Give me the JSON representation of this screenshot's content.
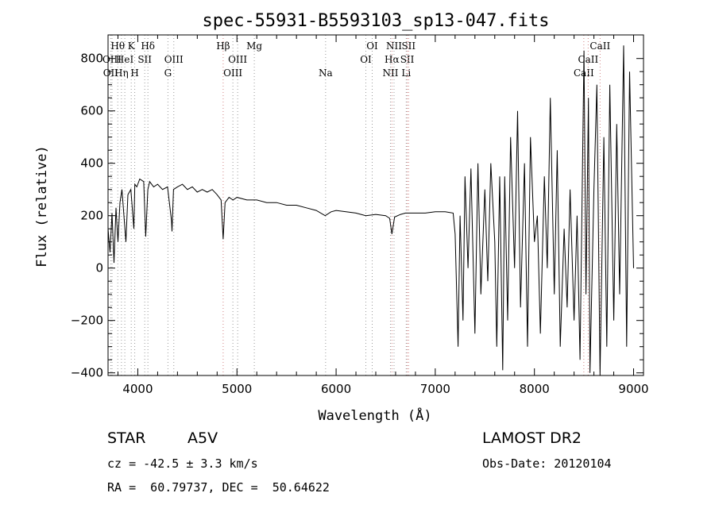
{
  "chart_data": {
    "type": "line",
    "title": "spec-55931-B5593103_sp13-047.fits",
    "xlabel": "Wavelength (Å)",
    "ylabel": "Flux (relative)",
    "xlim": [
      3700,
      9100
    ],
    "ylim": [
      -410,
      890
    ],
    "x_ticks": [
      4000,
      5000,
      6000,
      7000,
      8000,
      9000
    ],
    "y_ticks": [
      -400,
      -200,
      0,
      200,
      400,
      600,
      800
    ],
    "grid": false,
    "series": [
      {
        "x": [
          3700,
          3720,
          3740,
          3760,
          3780,
          3800,
          3820,
          3840,
          3860,
          3880,
          3900,
          3930,
          3960,
          3970,
          3990,
          4020,
          4060,
          4080,
          4101,
          4120,
          4160,
          4200,
          4250,
          4300,
          4340,
          4345,
          4360,
          4400,
          4450,
          4500,
          4550,
          4600,
          4650,
          4700,
          4750,
          4800,
          4840,
          4861,
          4880,
          4920,
          4960,
          5000,
          5100,
          5200,
          5300,
          5400,
          5500,
          5600,
          5700,
          5800,
          5890,
          5950,
          6000,
          6100,
          6200,
          6300,
          6400,
          6500,
          6540,
          6563,
          6590,
          6650,
          6700,
          6800,
          6900,
          7000,
          7100,
          7180,
          7200,
          7230,
          7250,
          7280,
          7300,
          7330,
          7360,
          7400,
          7430,
          7460,
          7500,
          7530,
          7560,
          7600,
          7620,
          7650,
          7680,
          7700,
          7730,
          7760,
          7800,
          7830,
          7860,
          7900,
          7930,
          7960,
          8000,
          8030,
          8060,
          8100,
          8130,
          8160,
          8200,
          8230,
          8260,
          8300,
          8330,
          8360,
          8400,
          8430,
          8460,
          8500,
          8520,
          8545,
          8560,
          8600,
          8630,
          8662,
          8700,
          8730,
          8760,
          8800,
          8830,
          8860,
          8900,
          8930,
          8960,
          9000
        ],
        "y": [
          150,
          60,
          210,
          20,
          230,
          100,
          250,
          300,
          200,
          100,
          280,
          300,
          150,
          320,
          310,
          340,
          330,
          120,
          300,
          330,
          310,
          320,
          300,
          310,
          180,
          140,
          300,
          310,
          320,
          300,
          310,
          290,
          300,
          290,
          300,
          280,
          260,
          110,
          250,
          270,
          260,
          270,
          260,
          260,
          250,
          250,
          240,
          240,
          230,
          220,
          200,
          215,
          220,
          215,
          210,
          200,
          205,
          200,
          190,
          130,
          195,
          205,
          210,
          210,
          210,
          215,
          215,
          210,
          130,
          -300,
          200,
          -200,
          350,
          0,
          380,
          -250,
          400,
          -100,
          300,
          -50,
          400,
          100,
          -300,
          350,
          -390,
          350,
          -200,
          500,
          0,
          600,
          -150,
          400,
          -300,
          500,
          100,
          200,
          -250,
          350,
          0,
          650,
          -100,
          450,
          -300,
          150,
          -150,
          300,
          -200,
          200,
          -350,
          830,
          -100,
          650,
          -400,
          300,
          700,
          -420,
          500,
          -300,
          700,
          -200,
          550,
          -100,
          850,
          -300,
          750,
          0
        ]
      }
    ],
    "line_markers": [
      {
        "label": "OII",
        "x": 3727,
        "row": 3,
        "color": "#9a9a9a"
      },
      {
        "label": "OIII",
        "x": 3740,
        "row": 2,
        "color": "#9a9a9a"
      },
      {
        "label": "Hθ",
        "x": 3798,
        "row": 1,
        "color": "#9a9a9a"
      },
      {
        "label": "Hη",
        "x": 3835,
        "row": 3,
        "color": "#9a9a9a"
      },
      {
        "label": "HeI",
        "x": 3869,
        "row": 2,
        "color": "#9a9a9a"
      },
      {
        "label": "K",
        "x": 3934,
        "row": 1,
        "color": "#9a9a9a"
      },
      {
        "label": "H",
        "x": 3969,
        "row": 3,
        "color": "#9a9a9a"
      },
      {
        "label": "SII",
        "x": 4070,
        "row": 2,
        "color": "#9a9a9a"
      },
      {
        "label": "Hδ",
        "x": 4102,
        "row": 1,
        "color": "#9a9a9a"
      },
      {
        "label": "G",
        "x": 4304,
        "row": 3,
        "color": "#9a9a9a"
      },
      {
        "label": "OIII",
        "x": 4363,
        "row": 2,
        "color": "#9a9a9a"
      },
      {
        "label": "Hβ",
        "x": 4861,
        "row": 1,
        "color": "#d08080"
      },
      {
        "label": "OIII",
        "x": 4959,
        "row": 3,
        "color": "#9a9a9a"
      },
      {
        "label": "OIII",
        "x": 5007,
        "row": 2,
        "color": "#9a9a9a"
      },
      {
        "label": "Mg",
        "x": 5175,
        "row": 1,
        "color": "#9a9a9a"
      },
      {
        "label": "Na",
        "x": 5894,
        "row": 3,
        "color": "#9a9a9a"
      },
      {
        "label": "OI",
        "x": 6300,
        "row": 2,
        "color": "#9a9a9a"
      },
      {
        "label": "OI",
        "x": 6364,
        "row": 1,
        "color": "#9a9a9a"
      },
      {
        "label": "NII",
        "x": 6548,
        "row": 3,
        "color": "#9a9a9a"
      },
      {
        "label": "Hα",
        "x": 6563,
        "row": 2,
        "color": "#d08080"
      },
      {
        "label": "NII",
        "x": 6584,
        "row": 1,
        "color": "#9a9a9a"
      },
      {
        "label": "Li",
        "x": 6707,
        "row": 3,
        "color": "#9a9a9a"
      },
      {
        "label": "SII",
        "x": 6717,
        "row": 2,
        "color": "#d08080"
      },
      {
        "label": "SII",
        "x": 6731,
        "row": 1,
        "color": "#d08080"
      },
      {
        "label": "CaII",
        "x": 8498,
        "row": 3,
        "color": "#d08080"
      },
      {
        "label": "CaII",
        "x": 8542,
        "row": 2,
        "color": "#d08080"
      },
      {
        "label": "CaII",
        "x": 8662,
        "row": 1,
        "color": "#d08080"
      }
    ]
  },
  "info": {
    "object_class": "STAR",
    "subclass": "A5V",
    "survey": "LAMOST DR2",
    "redshift_line": "cz = -42.5 ± 3.3 km/s",
    "obs_date_line": "Obs-Date: 20120104",
    "coords_line": "RA =  60.79737, DEC =  50.64622"
  }
}
